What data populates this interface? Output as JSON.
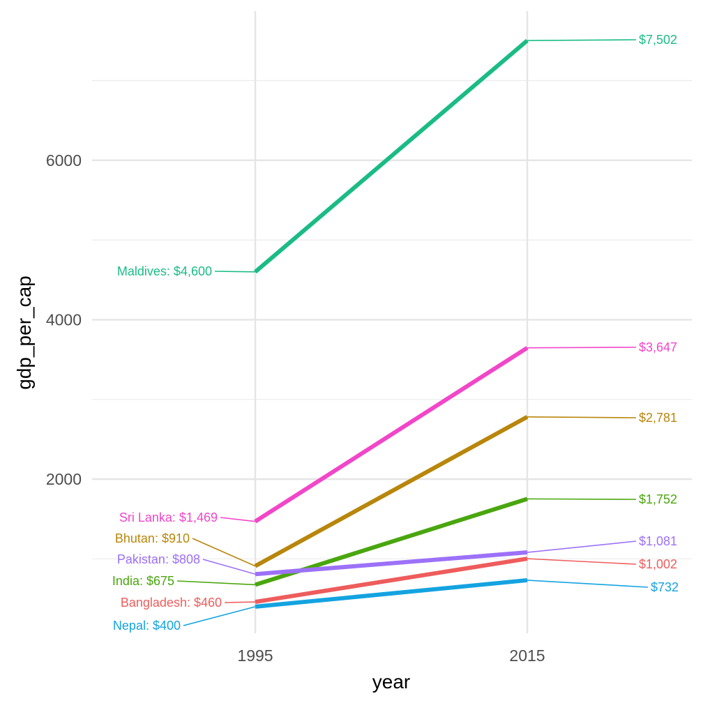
{
  "chart_data": {
    "type": "line",
    "title": "",
    "xlabel": "year",
    "ylabel": "gdp_per_cap",
    "x": [
      1995,
      2015
    ],
    "x_ticks": [
      "1995",
      "2015"
    ],
    "y_ticks": [
      "2000",
      "4000",
      "6000"
    ],
    "ylim": [
      0,
      7500
    ],
    "grid": true,
    "series": [
      {
        "name": "Maldives",
        "values": [
          4600,
          7502
        ],
        "color": "#1abc84",
        "label_start": "Maldives: $4,600",
        "label_end": "$7,502"
      },
      {
        "name": "Sri Lanka",
        "values": [
          1469,
          3647
        ],
        "color": "#f146c9",
        "label_start": "Sri Lanka: $1,469",
        "label_end": "$3,647"
      },
      {
        "name": "Bhutan",
        "values": [
          910,
          2781
        ],
        "color": "#b8860b",
        "label_start": "Bhutan: $910",
        "label_end": "$2,781"
      },
      {
        "name": "India",
        "values": [
          675,
          1752
        ],
        "color": "#4aa60e",
        "label_start": "India: $675",
        "label_end": "$1,752"
      },
      {
        "name": "Pakistan",
        "values": [
          808,
          1081
        ],
        "color": "#9c71f8",
        "label_start": "Pakistan: $808",
        "label_end": "$1,081"
      },
      {
        "name": "Bangladesh",
        "values": [
          460,
          1002
        ],
        "color": "#ee5c5c",
        "label_start": "Bangladesh: $460",
        "label_end": "$1,002"
      },
      {
        "name": "Nepal",
        "values": [
          400,
          732
        ],
        "color": "#14a3e0",
        "label_start": "Nepal: $400",
        "label_end": "$732"
      }
    ]
  }
}
